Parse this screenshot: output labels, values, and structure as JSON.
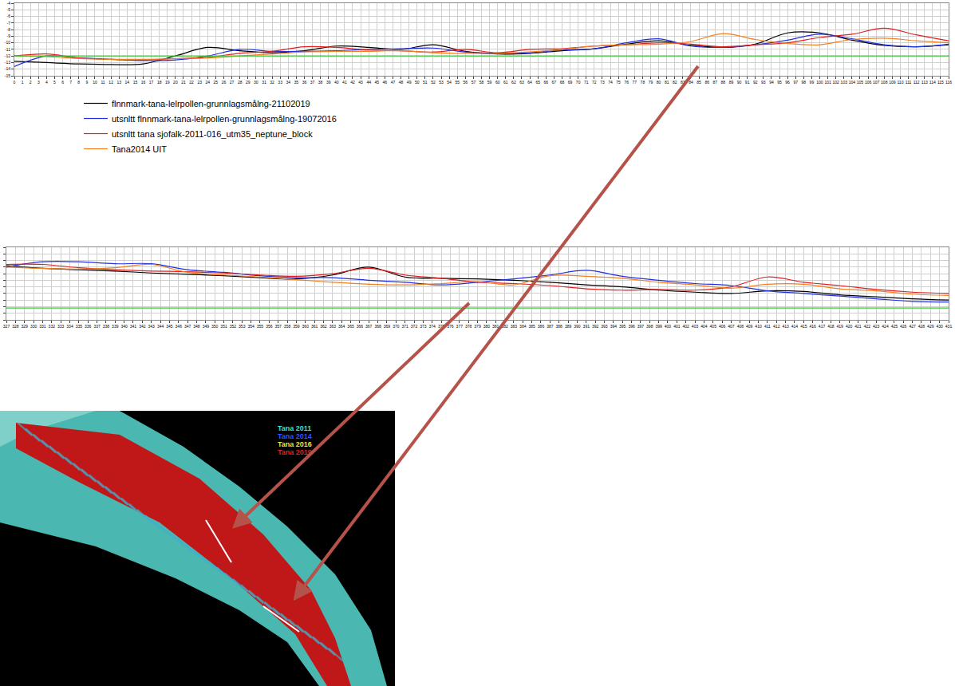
{
  "chart_data": [
    {
      "type": "line",
      "grid": true,
      "legend": "below",
      "tick_labels": true,
      "xlim": [
        0,
        116
      ],
      "xticks": [
        0,
        1,
        2,
        3,
        4,
        5,
        6,
        7,
        8,
        9,
        10,
        11,
        12,
        13,
        14,
        15,
        16,
        17,
        18,
        19,
        20,
        21,
        22,
        23,
        24,
        25,
        26,
        27,
        28,
        29,
        30,
        31,
        32,
        33,
        34,
        35,
        36,
        37,
        38,
        39,
        40,
        41,
        42,
        43,
        44,
        45,
        46,
        47,
        48,
        49,
        50,
        51,
        52,
        53,
        54,
        55,
        56,
        57,
        58,
        59,
        60,
        61,
        62,
        63,
        64,
        65,
        66,
        67,
        68,
        69,
        70,
        71,
        72,
        73,
        74,
        75,
        76,
        77,
        78,
        79,
        80,
        81,
        82,
        83,
        84,
        85,
        86,
        87,
        88,
        89,
        90,
        91,
        92,
        93,
        94,
        95,
        96,
        97,
        98,
        99,
        100,
        101,
        102,
        103,
        104,
        105,
        106,
        107,
        108,
        109,
        110,
        111,
        112,
        113,
        114,
        115,
        116
      ],
      "ylim": [
        -15,
        -4
      ],
      "yticks": [
        -15,
        -14,
        -13,
        -12,
        -11,
        -10,
        -9,
        -8,
        -7,
        -6,
        -5,
        -4
      ],
      "hlines": [
        {
          "value": -12,
          "color": "#33cc33"
        }
      ],
      "x": [
        0,
        4,
        8,
        12,
        16,
        20,
        24,
        28,
        32,
        36,
        40,
        44,
        48,
        52,
        56,
        60,
        64,
        68,
        72,
        76,
        80,
        84,
        88,
        92,
        96,
        100,
        104,
        108,
        112,
        116
      ],
      "series": [
        {
          "name": "flnnmark-tana-lelrpollen-grunnlagsmålng-21102019",
          "color": "#000000",
          "values": [
            -12.8,
            -13.0,
            -13.2,
            -13.3,
            -13.2,
            -12.0,
            -10.7,
            -11.2,
            -11.5,
            -11.2,
            -10.5,
            -10.7,
            -11.0,
            -10.3,
            -11.3,
            -11.7,
            -11.6,
            -11.2,
            -10.9,
            -10.2,
            -9.7,
            -10.4,
            -10.7,
            -10.2,
            -8.5,
            -8.5,
            -9.6,
            -10.4,
            -10.6,
            -10.3
          ]
        },
        {
          "name": "utsnltt flnnmark-tana-lelrpollen-grunnlagsmålng-19072016",
          "color": "#2030e0",
          "values": [
            -13.6,
            -12.0,
            -12.3,
            -12.5,
            -12.7,
            -12.6,
            -12.0,
            -11.0,
            -11.3,
            -11.3,
            -11.2,
            -11.0,
            -10.9,
            -10.8,
            -11.4,
            -11.6,
            -11.5,
            -11.1,
            -10.9,
            -10.0,
            -9.4,
            -10.5,
            -10.7,
            -10.3,
            -9.6,
            -8.7,
            -9.4,
            -10.3,
            -10.6,
            -10.2
          ]
        },
        {
          "name": "utsnltt tana sjofalk-2011-016_utm35_neptune_block",
          "color": "#e02020",
          "values": [
            -12.0,
            -11.7,
            -12.3,
            -12.5,
            -12.6,
            -12.4,
            -12.2,
            -11.6,
            -11.3,
            -10.6,
            -10.7,
            -11.1,
            -11.2,
            -11.4,
            -11.0,
            -11.5,
            -11.0,
            -10.9,
            -10.5,
            -10.3,
            -10.0,
            -10.2,
            -10.6,
            -10.3,
            -10.0,
            -9.2,
            -8.7,
            -7.8,
            -8.8,
            -9.7
          ]
        },
        {
          "name": "Tana2014 UIT",
          "color": "#f08020",
          "values": [
            -12.0,
            -12.1,
            -12.4,
            -12.5,
            -12.5,
            -12.4,
            -12.3,
            -12.0,
            -11.7,
            -11.4,
            -11.3,
            -11.3,
            -11.2,
            -11.5,
            -11.6,
            -11.6,
            -11.4,
            -11.0,
            -10.5,
            -10.3,
            -10.2,
            -9.8,
            -8.6,
            -9.5,
            -10.1,
            -10.3,
            -9.5,
            -9.3,
            -9.7,
            -10.0
          ]
        }
      ]
    },
    {
      "type": "line",
      "grid": true,
      "tick_labels": "x",
      "xlim": [
        327,
        431
      ],
      "xticks": [
        327,
        328,
        329,
        330,
        331,
        332,
        333,
        334,
        335,
        336,
        337,
        338,
        339,
        340,
        341,
        342,
        343,
        344,
        345,
        346,
        347,
        348,
        349,
        350,
        351,
        352,
        353,
        354,
        355,
        356,
        357,
        358,
        359,
        360,
        361,
        362,
        363,
        364,
        365,
        366,
        367,
        368,
        369,
        370,
        371,
        372,
        373,
        374,
        375,
        376,
        377,
        378,
        379,
        380,
        381,
        382,
        383,
        384,
        385,
        386,
        387,
        388,
        389,
        390,
        391,
        392,
        393,
        394,
        395,
        396,
        397,
        398,
        399,
        400,
        401,
        402,
        403,
        404,
        405,
        406,
        407,
        408,
        409,
        410,
        411,
        412,
        413,
        414,
        415,
        416,
        417,
        418,
        419,
        420,
        421,
        422,
        423,
        424,
        425,
        426,
        427,
        428,
        429,
        430,
        431
      ],
      "ylim": [
        -15,
        -4
      ],
      "yticks": [
        -15,
        -14,
        -13,
        -12,
        -11,
        -10,
        -9,
        -8,
        -7,
        -6,
        -5,
        -4
      ],
      "hlines": [
        {
          "value": -13.2,
          "color": "#33cc33"
        }
      ],
      "x": [
        327,
        331,
        335,
        339,
        343,
        347,
        351,
        355,
        359,
        363,
        367,
        371,
        375,
        379,
        383,
        387,
        391,
        395,
        399,
        403,
        407,
        411,
        415,
        419,
        423,
        427,
        431
      ],
      "series": [
        {
          "name": "flnnmark-tana-lelrpollen-grunnlagsmålng-21102019",
          "color": "#000000",
          "values": [
            -6.8,
            -7.2,
            -7.4,
            -7.6,
            -7.9,
            -8.1,
            -8.3,
            -8.6,
            -8.8,
            -8.2,
            -7.0,
            -8.5,
            -8.7,
            -8.8,
            -9.0,
            -9.3,
            -9.7,
            -10.0,
            -10.5,
            -10.8,
            -11.0,
            -10.6,
            -10.7,
            -11.2,
            -11.5,
            -11.8,
            -12.0
          ]
        },
        {
          "name": "utsnltt flnnmark-tana-lelrpollen-grunnlagsmålng-19072016",
          "color": "#2030e0",
          "values": [
            -7.0,
            -6.2,
            -6.2,
            -6.5,
            -6.5,
            -7.4,
            -7.8,
            -8.3,
            -8.6,
            -8.6,
            -9.0,
            -9.3,
            -9.7,
            -9.3,
            -8.8,
            -8.2,
            -7.5,
            -8.4,
            -9.0,
            -9.5,
            -9.8,
            -10.6,
            -11.0,
            -11.4,
            -11.8,
            -12.2,
            -12.3
          ]
        },
        {
          "name": "utsnltt tana sjofalk-2011-016_utm35_neptune_block",
          "color": "#e02020",
          "values": [
            -6.6,
            -6.6,
            -7.1,
            -7.4,
            -7.6,
            -7.7,
            -7.9,
            -8.2,
            -8.4,
            -8.0,
            -7.2,
            -8.2,
            -8.7,
            -9.3,
            -9.5,
            -9.8,
            -10.3,
            -10.5,
            -10.4,
            -10.5,
            -10.0,
            -8.5,
            -9.3,
            -9.8,
            -10.4,
            -10.8,
            -11.0
          ]
        },
        {
          "name": "Tana2014 UIT",
          "color": "#f08020",
          "values": [
            -7.0,
            -7.2,
            -7.3,
            -7.1,
            -6.6,
            -7.8,
            -8.2,
            -8.5,
            -8.9,
            -9.3,
            -9.6,
            -9.7,
            -9.5,
            -9.2,
            -9.7,
            -8.3,
            -8.4,
            -8.7,
            -9.3,
            -9.7,
            -10.2,
            -9.6,
            -9.6,
            -10.3,
            -10.6,
            -11.1,
            -11.3
          ]
        }
      ]
    }
  ],
  "map": {
    "legend": [
      {
        "label": "Tana 2011",
        "color": "#40e0d0"
      },
      {
        "label": "Tana 2014",
        "color": "#3050ff"
      },
      {
        "label": "Tana 2016",
        "color": "#f0e040"
      },
      {
        "label": "Tana 2019",
        "color": "#e02020"
      }
    ]
  }
}
